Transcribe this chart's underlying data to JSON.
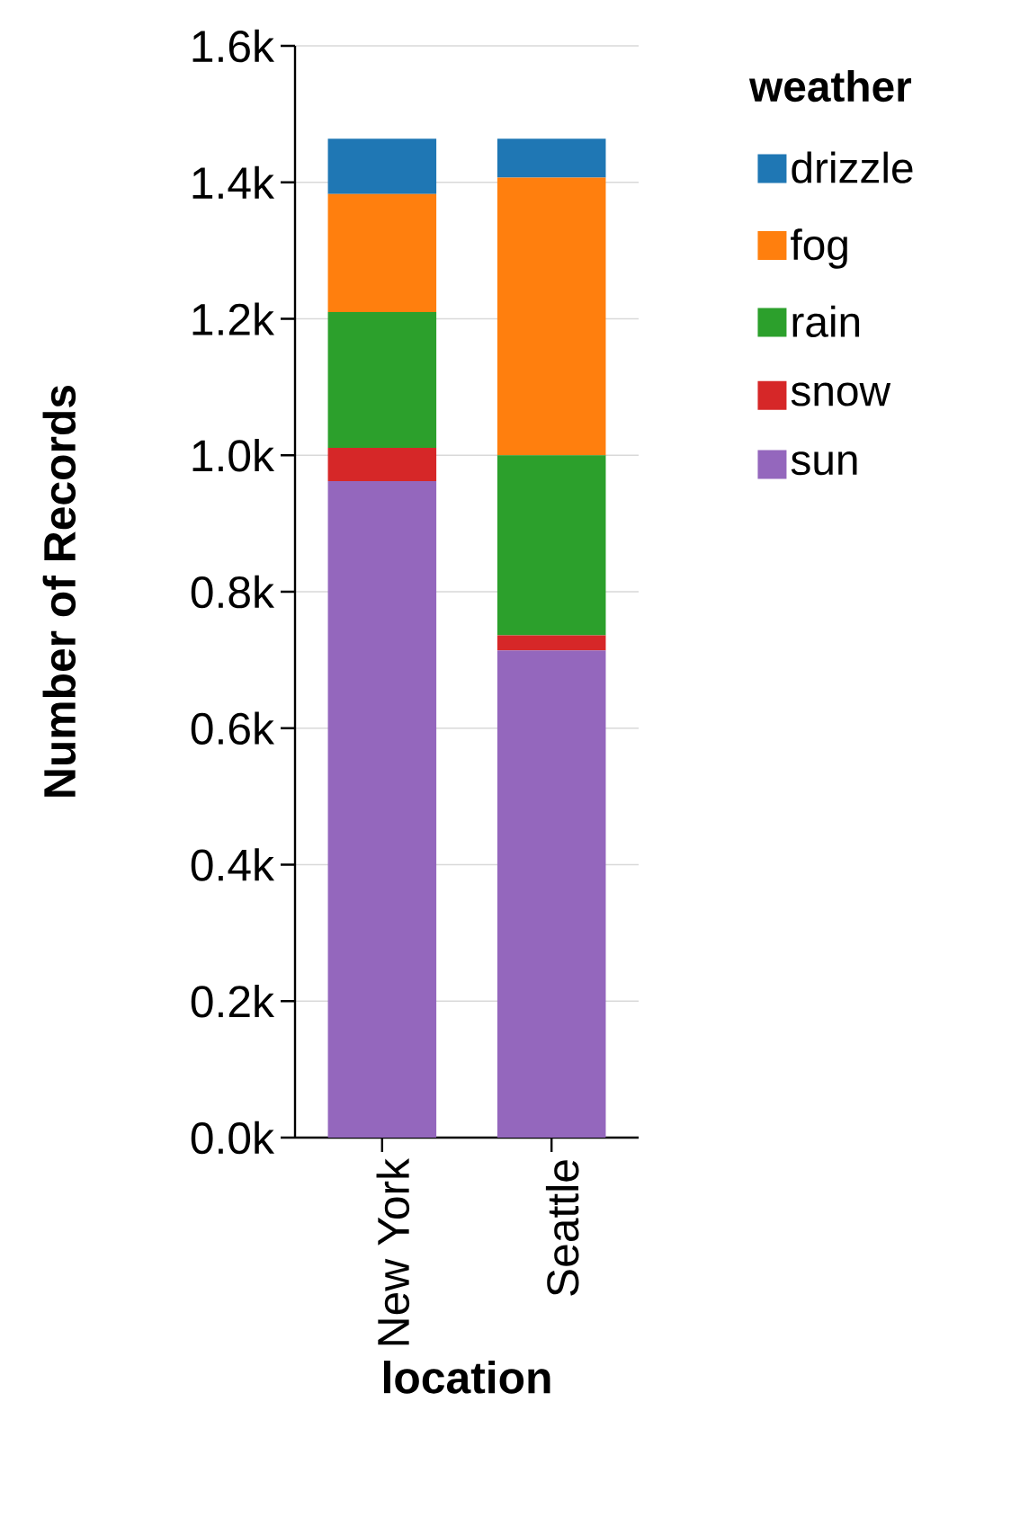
{
  "chart_data": {
    "type": "bar",
    "stacked": true,
    "xlabel": "location",
    "ylabel": "Number of Records",
    "legend_title": "weather",
    "legend": "top right",
    "grid": "y",
    "categories": [
      "New York",
      "Seattle"
    ],
    "series": [
      {
        "name": "sun",
        "color": "#9467bd",
        "values": [
          962,
          714
        ]
      },
      {
        "name": "snow",
        "color": "#d62728",
        "values": [
          49,
          22
        ]
      },
      {
        "name": "rain",
        "color": "#2ca02c",
        "values": [
          199,
          264
        ]
      },
      {
        "name": "fog",
        "color": "#ff7f0e",
        "values": [
          173,
          407
        ]
      },
      {
        "name": "drizzle",
        "color": "#1f77b4",
        "values": [
          81,
          57
        ]
      }
    ],
    "ylim": [
      0,
      1600
    ],
    "yticks": [
      {
        "value": 0,
        "label": "0.0k"
      },
      {
        "value": 200,
        "label": "0.2k"
      },
      {
        "value": 400,
        "label": "0.4k"
      },
      {
        "value": 600,
        "label": "0.6k"
      },
      {
        "value": 800,
        "label": "0.8k"
      },
      {
        "value": 1000,
        "label": "1.0k"
      },
      {
        "value": 1200,
        "label": "1.2k"
      },
      {
        "value": 1400,
        "label": "1.4k"
      },
      {
        "value": 1600,
        "label": "1.6k"
      }
    ]
  }
}
